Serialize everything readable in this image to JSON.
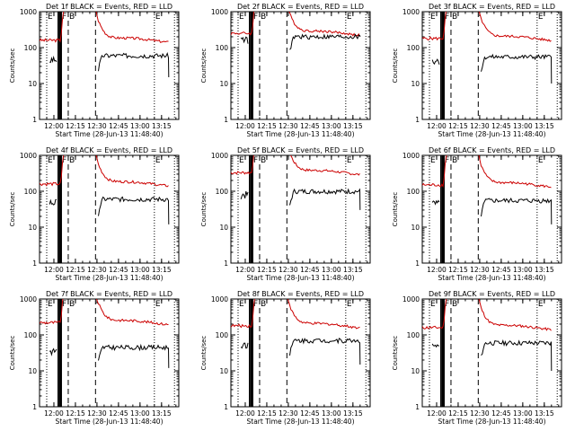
{
  "figure": {
    "common": {
      "ylabel": "Counts/sec",
      "xlabel": "Start Time (28-Jun-13 11:48:40)",
      "yticks": [
        {
          "v": 1,
          "label": "1"
        },
        {
          "v": 10,
          "label": "10"
        },
        {
          "v": 100,
          "label": "100"
        },
        {
          "v": 1000,
          "label": "1000"
        }
      ],
      "ylim": [
        1,
        1000
      ],
      "ylog": true,
      "xlim": [
        "11:50",
        "13:27"
      ],
      "xticks": [
        "12:00",
        "12:15",
        "12:30",
        "12:45",
        "13:00",
        "13:15"
      ],
      "markers": [
        {
          "time": "11:55",
          "label": "E",
          "style": "dotted"
        },
        {
          "time": "12:05",
          "label": "F",
          "style": "solid-thick"
        },
        {
          "time": "12:10",
          "label": "B",
          "style": "dashed"
        },
        {
          "time": "12:29",
          "label": "",
          "style": "dashed"
        },
        {
          "time": "13:10",
          "label": "E",
          "style": "dotted"
        },
        {
          "time": "13:24",
          "label": "",
          "style": "dotted"
        }
      ],
      "colors": {
        "events": "#000000",
        "lld": "#cc0000",
        "axes": "#000000"
      }
    },
    "panels": [
      {
        "title": "Det 1f BLACK = Events, RED = LLD",
        "lld_level": 160,
        "events_level": 60,
        "events_low": 15,
        "events_gap": false
      },
      {
        "title": "Det 2f BLACK = Events, RED = LLD",
        "lld_level": 250,
        "events_level": 200,
        "events_low": 200,
        "events_gap": true
      },
      {
        "title": "Det 3f BLACK = Events, RED = LLD",
        "lld_level": 180,
        "events_level": 55,
        "events_low": 10,
        "events_gap": false
      },
      {
        "title": "Det 4f BLACK = Events, RED = LLD",
        "lld_level": 160,
        "events_level": 60,
        "events_low": 12,
        "events_gap": false
      },
      {
        "title": "Det 5f BLACK = Events, RED = LLD",
        "lld_level": 330,
        "events_level": 100,
        "events_low": 30,
        "events_gap": false
      },
      {
        "title": "Det 6f BLACK = Events, RED = LLD",
        "lld_level": 150,
        "events_level": 55,
        "events_low": 12,
        "events_gap": false
      },
      {
        "title": "Det 7f BLACK = Events, RED = LLD",
        "lld_level": 220,
        "events_level": 45,
        "events_low": 12,
        "events_gap": false
      },
      {
        "title": "Det 8f BLACK = Events, RED = LLD",
        "lld_level": 180,
        "events_level": 70,
        "events_low": 15,
        "events_gap": false
      },
      {
        "title": "Det 9f BLACK = Events, RED = LLD",
        "lld_level": 160,
        "events_level": 60,
        "events_low": 10,
        "events_gap": false
      }
    ]
  }
}
